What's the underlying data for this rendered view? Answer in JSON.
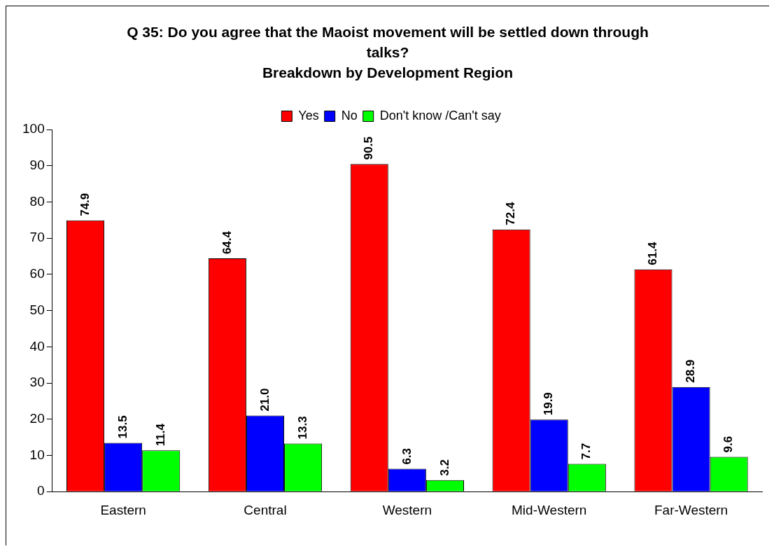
{
  "chart_data": {
    "type": "bar",
    "title": "Q 35: Do you agree that the Maoist movement  will be settled down through talks?",
    "subtitle": "Breakdown by Development Region",
    "categories": [
      "Eastern",
      "Central",
      "Western",
      "Mid-Western",
      "Far-Western"
    ],
    "series": [
      {
        "name": "Yes",
        "color": "#ff0000",
        "values": [
          74.9,
          64.4,
          90.5,
          72.4,
          61.4
        ],
        "value_labels": [
          "74.9",
          "64.4",
          "90.5",
          "72.4",
          "61.4"
        ]
      },
      {
        "name": "No",
        "color": "#0000ff",
        "values": [
          13.5,
          21.0,
          6.3,
          19.9,
          28.9
        ],
        "value_labels": [
          "13.5",
          "21.0",
          "6.3",
          "19.9",
          "28.9"
        ]
      },
      {
        "name": "Don't know /Can't say",
        "color": "#00ff00",
        "values": [
          11.4,
          13.3,
          3.2,
          7.7,
          9.6
        ],
        "value_labels": [
          "11.4",
          "13.3",
          "3.2",
          "7.7",
          "9.6"
        ]
      }
    ],
    "ylim": [
      0,
      100
    ],
    "yticks": [
      0,
      10,
      20,
      30,
      40,
      50,
      60,
      70,
      80,
      90,
      100
    ],
    "grid": false,
    "legend": "top"
  }
}
